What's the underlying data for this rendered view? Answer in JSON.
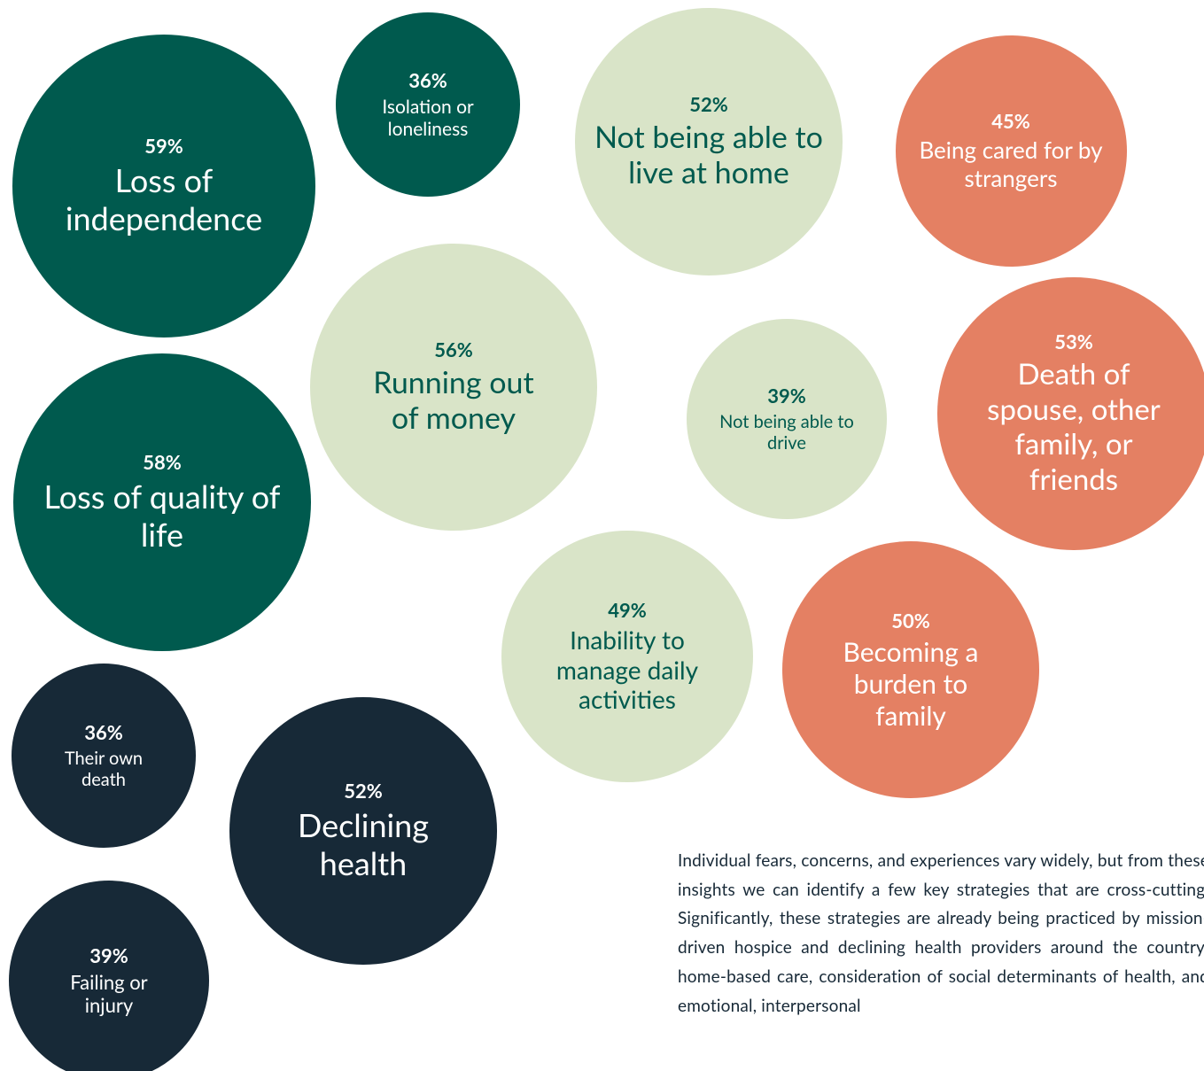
{
  "chart_data": {
    "type": "bubble",
    "categories": [
      "Loss of independence",
      "Isolation or loneliness",
      "Not being able to live at home",
      "Being cared for by strangers",
      "Running out of money",
      "Not being able to drive",
      "Death of spouse, other family, or friends",
      "Loss of quality of life",
      "Inability to manage daily activities",
      "Becoming a burden to family",
      "Their own death",
      "Declining health",
      "Failing or injury"
    ],
    "values": [
      59,
      36,
      52,
      45,
      56,
      39,
      53,
      58,
      49,
      50,
      36,
      52,
      39
    ],
    "value_labels": [
      "59%",
      "36%",
      "52%",
      "45%",
      "56%",
      "39%",
      "53%",
      "58%",
      "49%",
      "50%",
      "36%",
      "52%",
      "39%"
    ],
    "colors": [
      "#005a4e",
      "#005a4e",
      "#d9e4c8",
      "#e48063",
      "#d9e4c8",
      "#d9e4c8",
      "#e48063",
      "#005a4e",
      "#d9e4c8",
      "#e48063",
      "#172937",
      "#172937",
      "#172937"
    ],
    "text_colors": [
      "#ffffff",
      "#ffffff",
      "#005a4e",
      "#ffffff",
      "#005a4e",
      "#005a4e",
      "#ffffff",
      "#ffffff",
      "#005a4e",
      "#ffffff",
      "#ffffff",
      "#ffffff",
      "#ffffff"
    ]
  },
  "paragraph": "Individual fears, concerns, and experiences vary widely, but from these insights we can identify a few key strategies that are cross-cutting. Significantly, these strategies are already being practiced by mission-driven hospice and declining health providers around the country: home-based care, consideration of social determinants of health, and emotional, interpersonal"
}
